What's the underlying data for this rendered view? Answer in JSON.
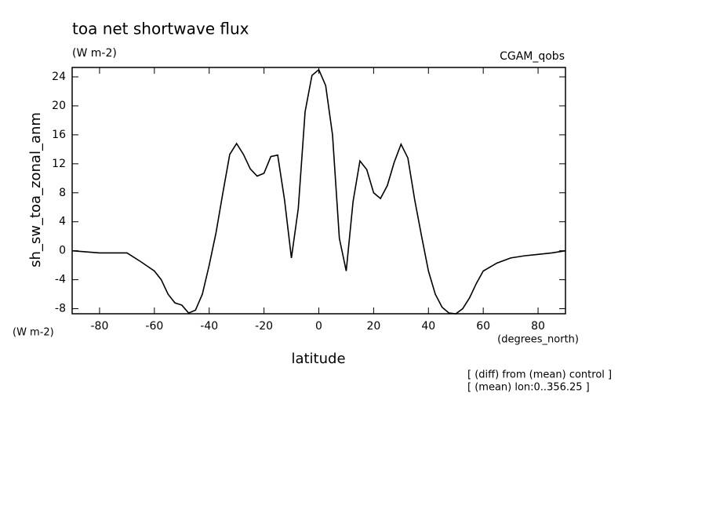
{
  "chart_data": {
    "type": "line",
    "title": "toa net shortwave flux",
    "subtitle": "(W m-2)",
    "dataset_label": "CGAM_qobs",
    "y_label": "sh_sw_toa_zonal_anm",
    "y_units": "(W m-2)",
    "x_label": "latitude",
    "x_units": "(degrees_north)",
    "notes": [
      "[ (diff) from (mean) control ]",
      "[ (mean) lon:0..356.25 ]"
    ],
    "x": [
      -90,
      -80,
      -70,
      -65,
      -60,
      -57.5,
      -55,
      -52.5,
      -50,
      -47.5,
      -45,
      -42.5,
      -40,
      -37.5,
      -35,
      -32.5,
      -30,
      -27.5,
      -25,
      -22.5,
      -20,
      -17.5,
      -15,
      -12.5,
      -10,
      -7.5,
      -5,
      -2.5,
      0,
      2.5,
      5,
      7.5,
      10,
      12.5,
      15,
      17.5,
      20,
      22.5,
      25,
      27.5,
      30,
      32.5,
      35,
      37.5,
      40,
      42.5,
      45,
      47.5,
      50,
      52.5,
      55,
      57.5,
      60,
      65,
      70,
      75,
      80,
      85,
      90
    ],
    "series": [
      {
        "name": "sh_sw_toa_zonal_anm",
        "color": "#000000",
        "values": [
          0,
          -0.3,
          -0.3,
          -1.5,
          -2.8,
          -4,
          -6,
          -7.2,
          -7.5,
          -8.6,
          -8.2,
          -6,
          -2,
          2.5,
          8,
          13.3,
          14.8,
          13.3,
          11.3,
          10.3,
          10.7,
          13,
          13.2,
          7,
          -1,
          5.8,
          19.2,
          24.2,
          25,
          22.8,
          16,
          1.7,
          -2.8,
          6.8,
          12.4,
          11.2,
          8,
          7.2,
          9,
          12.2,
          14.7,
          12.8,
          7,
          2,
          -2.8,
          -6,
          -7.8,
          -8.6,
          -8.7,
          -8,
          -6.5,
          -4.5,
          -2.8,
          -1.7,
          -1,
          -0.7,
          -0.5,
          -0.3,
          0
        ]
      }
    ],
    "xlim": [
      -90,
      90
    ],
    "xticks": [
      -80,
      -60,
      -40,
      -20,
      0,
      20,
      40,
      60,
      80
    ],
    "ylim": [
      -8.7,
      25.3
    ],
    "yticks": [
      -8,
      -4,
      0,
      4,
      8,
      12,
      16,
      20,
      24
    ],
    "grid": false
  }
}
